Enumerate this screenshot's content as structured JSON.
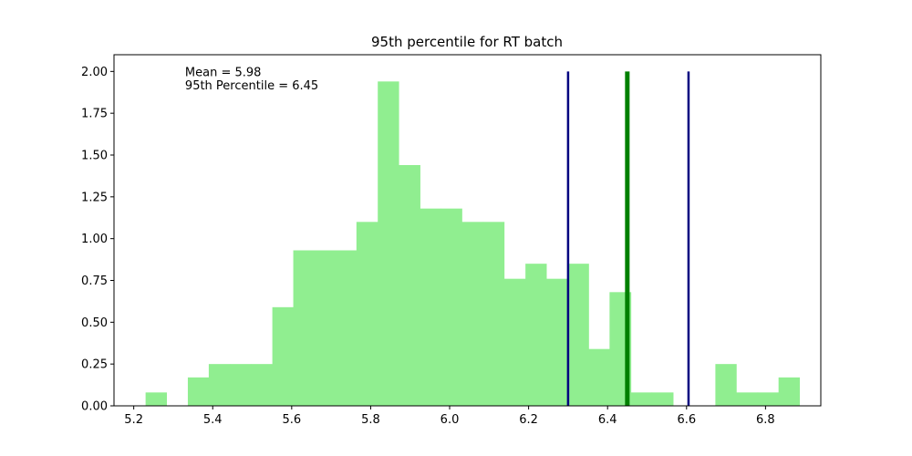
{
  "chart_data": {
    "type": "bar",
    "title": "95th percentile for RT batch",
    "xlabel": "",
    "ylabel": "",
    "xlim": [
      5.15,
      6.94
    ],
    "ylim": [
      0,
      2.1
    ],
    "xticks": [
      5.2,
      5.4,
      5.6,
      5.8,
      6.0,
      6.2,
      6.4,
      6.6,
      6.8
    ],
    "xtick_labels": [
      "5.2",
      "5.4",
      "5.6",
      "5.8",
      "6.0",
      "6.2",
      "6.4",
      "6.6",
      "6.8"
    ],
    "yticks": [
      0,
      0.25,
      0.5,
      0.75,
      1.0,
      1.25,
      1.5,
      1.75,
      2.0
    ],
    "ytick_labels": [
      "0.00",
      "0.25",
      "0.50",
      "0.75",
      "1.00",
      "1.25",
      "1.50",
      "1.75",
      "2.00"
    ],
    "grid": false,
    "bar_color": "#90ee90",
    "bins": [
      {
        "x0": 5.23,
        "x1": 5.283,
        "value": 0.08
      },
      {
        "x0": 5.283,
        "x1": 5.337,
        "value": 0.0
      },
      {
        "x0": 5.337,
        "x1": 5.39,
        "value": 0.17
      },
      {
        "x0": 5.39,
        "x1": 5.444,
        "value": 0.25
      },
      {
        "x0": 5.444,
        "x1": 5.497,
        "value": 0.25
      },
      {
        "x0": 5.497,
        "x1": 5.551,
        "value": 0.25
      },
      {
        "x0": 5.551,
        "x1": 5.604,
        "value": 0.59
      },
      {
        "x0": 5.604,
        "x1": 5.657,
        "value": 0.93
      },
      {
        "x0": 5.657,
        "x1": 5.711,
        "value": 0.93
      },
      {
        "x0": 5.711,
        "x1": 5.764,
        "value": 0.93
      },
      {
        "x0": 5.764,
        "x1": 5.818,
        "value": 1.1
      },
      {
        "x0": 5.818,
        "x1": 5.871,
        "value": 1.94
      },
      {
        "x0": 5.871,
        "x1": 5.925,
        "value": 1.44
      },
      {
        "x0": 5.925,
        "x1": 5.978,
        "value": 1.18
      },
      {
        "x0": 5.978,
        "x1": 6.031,
        "value": 1.18
      },
      {
        "x0": 6.031,
        "x1": 6.085,
        "value": 1.1
      },
      {
        "x0": 6.085,
        "x1": 6.138,
        "value": 1.1
      },
      {
        "x0": 6.138,
        "x1": 6.192,
        "value": 0.76
      },
      {
        "x0": 6.192,
        "x1": 6.245,
        "value": 0.85
      },
      {
        "x0": 6.245,
        "x1": 6.299,
        "value": 0.76
      },
      {
        "x0": 6.299,
        "x1": 6.352,
        "value": 0.85
      },
      {
        "x0": 6.352,
        "x1": 6.405,
        "value": 0.34
      },
      {
        "x0": 6.405,
        "x1": 6.459,
        "value": 0.68
      },
      {
        "x0": 6.459,
        "x1": 6.512,
        "value": 0.08
      },
      {
        "x0": 6.512,
        "x1": 6.566,
        "value": 0.08
      },
      {
        "x0": 6.566,
        "x1": 6.619,
        "value": 0.0
      },
      {
        "x0": 6.619,
        "x1": 6.673,
        "value": 0.0
      },
      {
        "x0": 6.673,
        "x1": 6.726,
        "value": 0.25
      },
      {
        "x0": 6.726,
        "x1": 6.78,
        "value": 0.08
      },
      {
        "x0": 6.78,
        "x1": 6.833,
        "value": 0.08
      },
      {
        "x0": 6.833,
        "x1": 6.886,
        "value": 0.17
      }
    ],
    "vlines": [
      {
        "x": 6.3,
        "y0": 0,
        "y1": 2.0,
        "color": "#000080",
        "width": 2.5
      },
      {
        "x": 6.45,
        "y0": 0,
        "y1": 2.0,
        "color": "#008000",
        "width": 5
      },
      {
        "x": 6.605,
        "y0": 0,
        "y1": 2.0,
        "color": "#000080",
        "width": 2.5
      }
    ],
    "annotations": [
      {
        "text": "Mean = 5.98",
        "x": 5.33,
        "y": 2.0
      },
      {
        "text": "95th Percentile = 6.45",
        "x": 5.33,
        "y": 1.92
      }
    ]
  }
}
